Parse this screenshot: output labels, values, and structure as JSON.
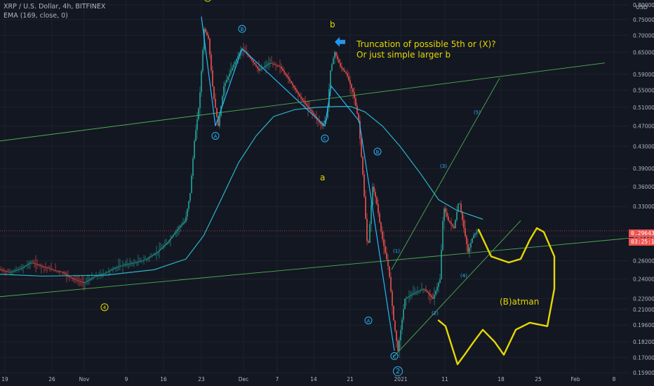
{
  "header": {
    "symbol_line": "XRP / U.S. Dollar, 4h, BITFINEX",
    "indicator_line": "EMA (169, close, 0)",
    "currency": "USD"
  },
  "annotations": {
    "note_line1": "Truncation of possible 5th or (X)?",
    "note_line2": "Or just simple larger b",
    "label_b": "b",
    "label_a": "a",
    "batman": "(B)atman"
  },
  "price_badges": {
    "last_price": "0.29643",
    "countdown": "03:25:19",
    "last_price_color": "#ef5350",
    "countdown_color": "#ef5350"
  },
  "colors": {
    "background": "#131722",
    "grid": "#1e222d",
    "candle_up": "#26a69a",
    "candle_down": "#ef5350",
    "ema": "#2bb6c8",
    "channel": "#4caf50",
    "wave_cyan": "#29b6f6",
    "wave_yellow": "#e6d800",
    "arrow": "#2196f3",
    "axis_text": "#b2b5be"
  },
  "chart_data": {
    "type": "candlestick",
    "symbol": "XRP / U.S. Dollar",
    "interval": "4h",
    "exchange": "BITFINEX",
    "y_scale": "log",
    "ylim": [
      0.159,
      0.8
    ],
    "x_tick_labels": [
      "19",
      "26",
      "Nov",
      "9",
      "16",
      "23",
      "Dec",
      "7",
      "14",
      "21",
      "2021",
      "11",
      "18",
      "25",
      "Feb",
      "8"
    ],
    "y_tick_labels": [
      "0.80000",
      "0.75000",
      "0.70000",
      "0.65000",
      "0.59000",
      "0.55000",
      "0.51000",
      "0.47000",
      "0.43000",
      "0.39000",
      "0.36000",
      "0.33000",
      "0.29000",
      "0.26000",
      "0.24000",
      "0.22000",
      "0.21000",
      "0.19600",
      "0.18200",
      "0.17000",
      "0.15900"
    ],
    "y_ticks": [
      0.8,
      0.75,
      0.7,
      0.65,
      0.59,
      0.55,
      0.51,
      0.47,
      0.43,
      0.39,
      0.36,
      0.33,
      0.29,
      0.26,
      0.24,
      0.22,
      0.21,
      0.196,
      0.182,
      0.17,
      0.159
    ],
    "price_path": [
      [
        0,
        0.25
      ],
      [
        15,
        0.247
      ],
      [
        30,
        0.251
      ],
      [
        45,
        0.258
      ],
      [
        60,
        0.254
      ],
      [
        75,
        0.25
      ],
      [
        90,
        0.247
      ],
      [
        105,
        0.24
      ],
      [
        120,
        0.236
      ],
      [
        135,
        0.242
      ],
      [
        150,
        0.246
      ],
      [
        165,
        0.252
      ],
      [
        180,
        0.256
      ],
      [
        195,
        0.258
      ],
      [
        210,
        0.262
      ],
      [
        225,
        0.27
      ],
      [
        240,
        0.282
      ],
      [
        255,
        0.3
      ],
      [
        265,
        0.31
      ],
      [
        272,
        0.35
      ],
      [
        278,
        0.44
      ],
      [
        285,
        0.52
      ],
      [
        292,
        0.72
      ],
      [
        298,
        0.69
      ],
      [
        305,
        0.54
      ],
      [
        312,
        0.47
      ],
      [
        320,
        0.56
      ],
      [
        330,
        0.6
      ],
      [
        345,
        0.66
      ],
      [
        355,
        0.64
      ],
      [
        370,
        0.6
      ],
      [
        385,
        0.62
      ],
      [
        400,
        0.61
      ],
      [
        415,
        0.57
      ],
      [
        430,
        0.53
      ],
      [
        445,
        0.5
      ],
      [
        460,
        0.47
      ],
      [
        467,
        0.49
      ],
      [
        472,
        0.6
      ],
      [
        478,
        0.65
      ],
      [
        486,
        0.61
      ],
      [
        495,
        0.59
      ],
      [
        505,
        0.54
      ],
      [
        512,
        0.48
      ],
      [
        518,
        0.38
      ],
      [
        525,
        0.27
      ],
      [
        532,
        0.36
      ],
      [
        537,
        0.34
      ],
      [
        545,
        0.29
      ],
      [
        555,
        0.25
      ],
      [
        562,
        0.2
      ],
      [
        568,
        0.175
      ],
      [
        578,
        0.22
      ],
      [
        590,
        0.225
      ],
      [
        605,
        0.23
      ],
      [
        618,
        0.22
      ],
      [
        628,
        0.24
      ],
      [
        633,
        0.33
      ],
      [
        640,
        0.31
      ],
      [
        648,
        0.3
      ],
      [
        655,
        0.34
      ],
      [
        662,
        0.3
      ],
      [
        668,
        0.27
      ],
      [
        675,
        0.29
      ],
      [
        682,
        0.297
      ]
    ],
    "ema_path": [
      [
        0,
        0.245
      ],
      [
        60,
        0.243
      ],
      [
        150,
        0.244
      ],
      [
        220,
        0.25
      ],
      [
        265,
        0.262
      ],
      [
        290,
        0.29
      ],
      [
        315,
        0.34
      ],
      [
        340,
        0.4
      ],
      [
        365,
        0.45
      ],
      [
        390,
        0.49
      ],
      [
        420,
        0.505
      ],
      [
        450,
        0.51
      ],
      [
        480,
        0.512
      ],
      [
        500,
        0.512
      ],
      [
        520,
        0.5
      ],
      [
        545,
        0.47
      ],
      [
        570,
        0.43
      ],
      [
        600,
        0.38
      ],
      [
        625,
        0.34
      ],
      [
        650,
        0.325
      ],
      [
        670,
        0.318
      ],
      [
        688,
        0.312
      ]
    ],
    "channel_lines": [
      {
        "from": [
          0,
          0.44
        ],
        "to": [
          862,
          0.62
        ]
      },
      {
        "from": [
          0,
          0.222
        ],
        "to": [
          932,
          0.29
        ]
      },
      {
        "from": [
          560,
          0.17
        ],
        "to": [
          742,
          0.31
        ]
      },
      {
        "from": [
          558,
          0.25
        ],
        "to": [
          712,
          0.58
        ]
      }
    ],
    "wave_path": [
      [
        287,
        0.76
      ],
      [
        307,
        0.47
      ],
      [
        345,
        0.66
      ],
      [
        463,
        0.47
      ],
      [
        472,
        0.56
      ],
      [
        512,
        0.48
      ],
      [
        562,
        0.175
      ]
    ],
    "batman_path": [
      [
        682,
        0.298
      ],
      [
        700,
        0.265
      ],
      [
        725,
        0.258
      ],
      [
        742,
        0.262
      ],
      [
        755,
        0.285
      ],
      [
        765,
        0.3
      ],
      [
        775,
        0.295
      ],
      [
        790,
        0.265
      ],
      [
        790,
        0.23
      ],
      [
        780,
        0.195
      ],
      [
        755,
        0.198
      ],
      [
        735,
        0.192
      ],
      [
        718,
        0.172
      ],
      [
        705,
        0.182
      ],
      [
        688,
        0.192
      ],
      [
        675,
        0.182
      ],
      [
        662,
        0.172
      ],
      [
        652,
        0.165
      ],
      [
        642,
        0.182
      ],
      [
        635,
        0.195
      ],
      [
        625,
        0.2
      ]
    ],
    "cyan_labels": [
      {
        "text": "A",
        "x": 307,
        "y": 0.45,
        "circled": true
      },
      {
        "text": "B",
        "x": 345,
        "y": 0.72,
        "circled": true
      },
      {
        "text": "C",
        "x": 463,
        "y": 0.445,
        "circled": true
      },
      {
        "text": "B",
        "x": 538,
        "y": 0.42,
        "circled": true
      },
      {
        "text": "A",
        "x": 525,
        "y": 0.2,
        "circled": true
      },
      {
        "text": "C",
        "x": 562,
        "y": 0.171,
        "circled": true
      },
      {
        "text": "2",
        "x": 567,
        "y": 0.16,
        "circled": true
      },
      {
        "text": "(1)",
        "x": 565,
        "y": 0.272,
        "circled": false
      },
      {
        "text": "(2)",
        "x": 620,
        "y": 0.207,
        "circled": false
      },
      {
        "text": "(3)",
        "x": 632,
        "y": 0.395,
        "circled": false
      },
      {
        "text": "(4)",
        "x": 661,
        "y": 0.244,
        "circled": false
      },
      {
        "text": "(5)",
        "x": 680,
        "y": 0.5,
        "circled": false
      }
    ],
    "yellow_labels": [
      {
        "text": "4",
        "x": 149,
        "y": 0.212,
        "circled": true
      },
      {
        "text": "5",
        "x": 296,
        "y": 0.825,
        "circled": true
      }
    ],
    "arrow_at": [
      485,
      0.68
    ]
  }
}
